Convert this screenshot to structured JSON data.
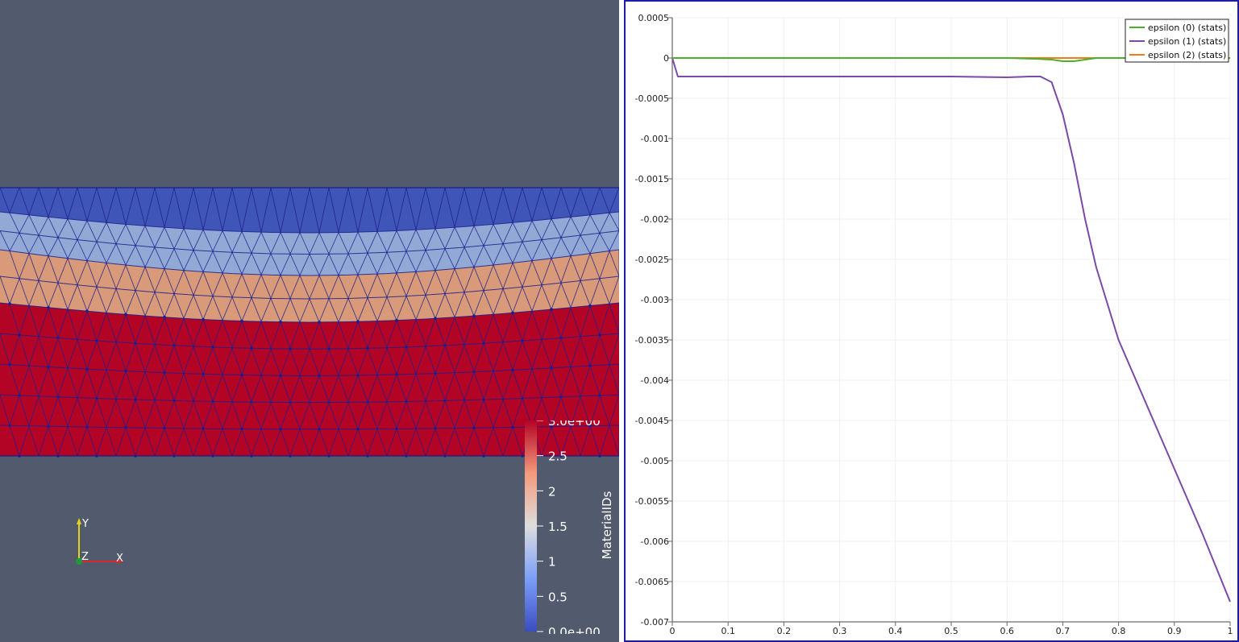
{
  "render_view": {
    "colorbar": {
      "title": "MaterialIDs",
      "tick_labels": [
        "3.0e+00",
        "2.5",
        "2",
        "1.5",
        "1",
        "0.5",
        "0.0e+00"
      ],
      "range": [
        0,
        3
      ],
      "colors": {
        "low": "#3b4cc0",
        "mid": "#dddddd",
        "high": "#b40426"
      }
    },
    "orientation_axes": {
      "x_label": "X",
      "y_label": "Y",
      "z_label": "Z"
    },
    "background_color": "#525a6e",
    "layer_colors": [
      "#b40426",
      "#d89a78",
      "#92a9d6",
      "#3f56b8"
    ],
    "mesh_edge_color": "#1a1f8c"
  },
  "chart_data": {
    "type": "line",
    "xlim": [
      0,
      1
    ],
    "ylim": [
      -0.007,
      0.0005
    ],
    "xticks": [
      "0",
      "0.1",
      "0.2",
      "0.3",
      "0.4",
      "0.5",
      "0.6",
      "0.7",
      "0.8",
      "0.9",
      "1"
    ],
    "yticks": [
      "0.0005",
      "0",
      "-0.0005",
      "-0.001",
      "-0.0015",
      "-0.002",
      "-0.0025",
      "-0.003",
      "-0.0035",
      "-0.004",
      "-0.0045",
      "-0.005",
      "-0.0055",
      "-0.006",
      "-0.0065",
      "-0.007"
    ],
    "grid": true,
    "legend_position": "top-right",
    "series": [
      {
        "name": "epsilon (0) (stats)",
        "color": "#4daf2a",
        "x": [
          0,
          0.1,
          0.2,
          0.3,
          0.4,
          0.5,
          0.6,
          0.65,
          0.68,
          0.7,
          0.72,
          0.74,
          0.76,
          0.8,
          0.9,
          1.0
        ],
        "y": [
          0,
          0,
          0,
          0,
          0,
          0,
          0,
          -1e-05,
          -2e-05,
          -4e-05,
          -4e-05,
          -2e-05,
          0,
          0,
          0,
          0
        ]
      },
      {
        "name": "epsilon (1) (stats)",
        "color": "#7b4aa8",
        "x": [
          0,
          0.01,
          0.1,
          0.2,
          0.3,
          0.4,
          0.5,
          0.55,
          0.6,
          0.64,
          0.66,
          0.68,
          0.7,
          0.72,
          0.74,
          0.76,
          0.8,
          0.85,
          0.9,
          0.95,
          1.0
        ],
        "y": [
          0,
          -0.00023,
          -0.00023,
          -0.00023,
          -0.00023,
          -0.00023,
          -0.00023,
          -0.000235,
          -0.00024,
          -0.00023,
          -0.00023,
          -0.0003,
          -0.0007,
          -0.0013,
          -0.002,
          -0.0026,
          -0.0035,
          -0.0043,
          -0.0051,
          -0.0059,
          -0.00675
        ]
      },
      {
        "name": "epsilon (2) (stats)",
        "color": "#f07d1a",
        "x": [
          0,
          0.1,
          0.2,
          0.3,
          0.4,
          0.5,
          0.6,
          0.7,
          0.8,
          0.9,
          1.0
        ],
        "y": [
          0,
          0,
          0,
          0,
          0,
          0,
          0,
          0,
          0,
          0,
          0
        ]
      }
    ]
  }
}
